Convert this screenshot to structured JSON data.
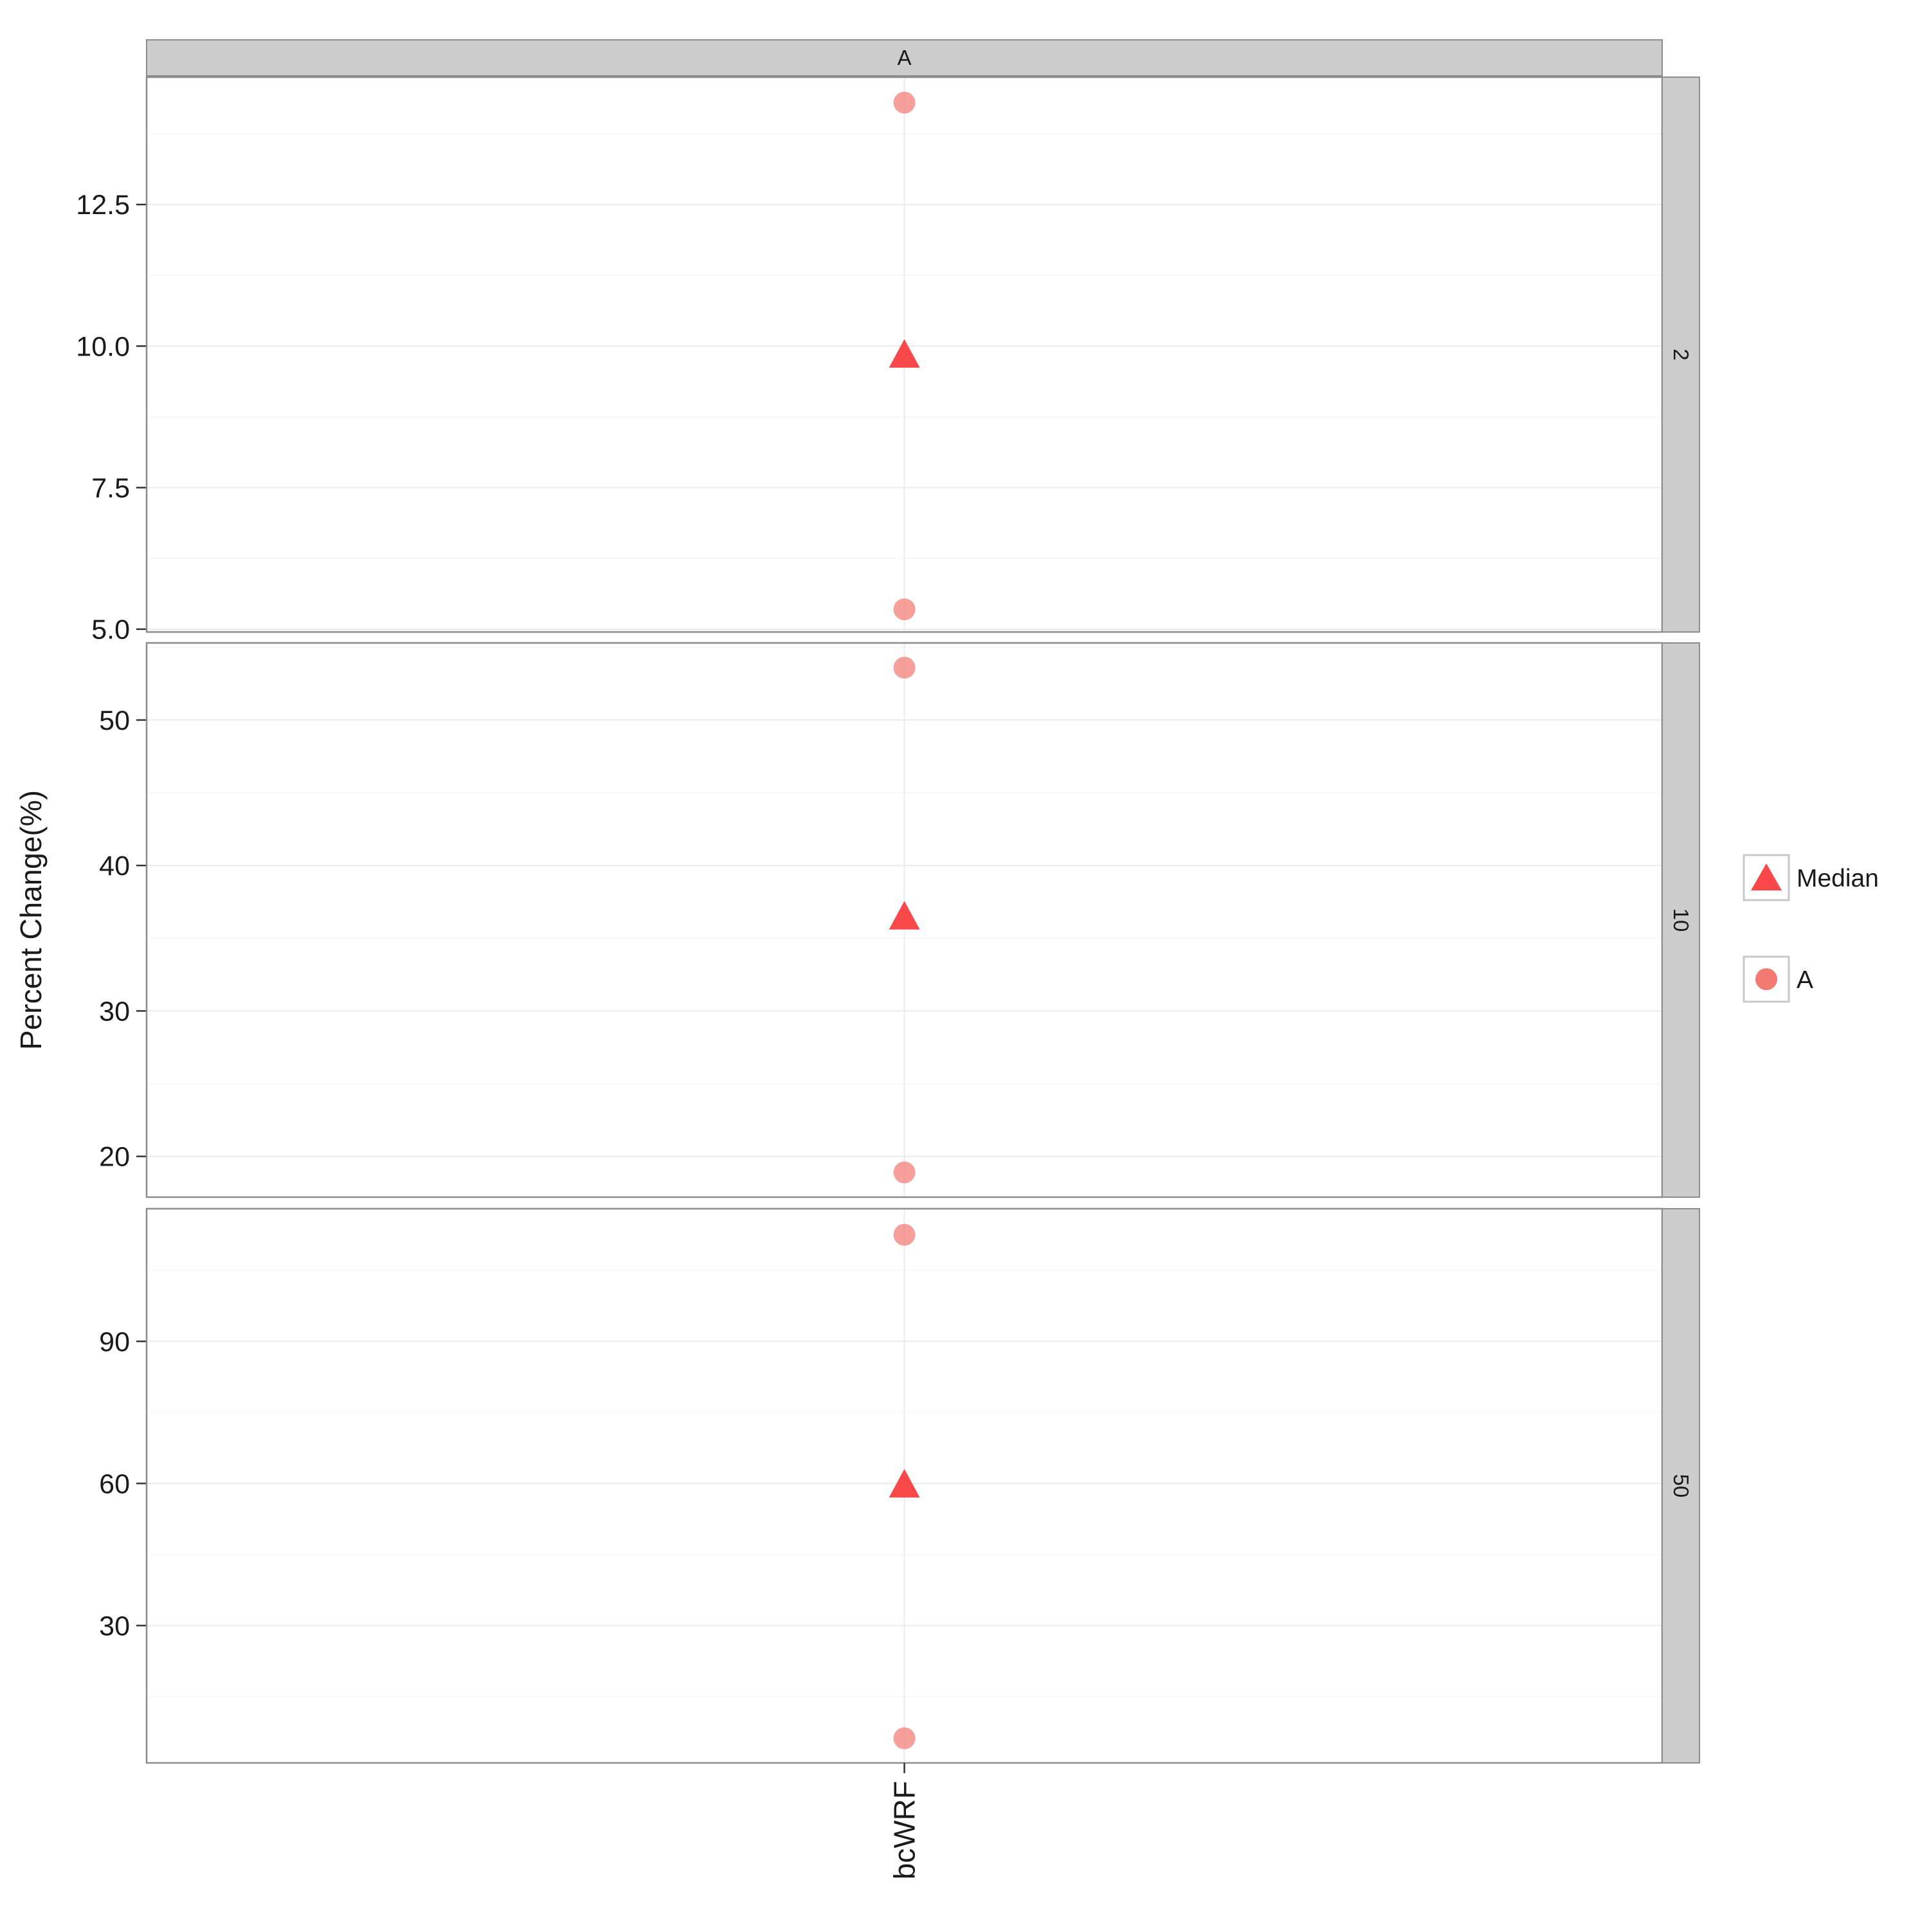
{
  "chart_data": {
    "type": "scatter",
    "ylabel": "Percent Change(%)",
    "xlabel": "",
    "categories": [
      "bcWRF"
    ],
    "column_strip": "A",
    "colors": {
      "median": "#F8484A",
      "point": "#F47A73",
      "strip_fill": "#CDCDCD",
      "panel_border": "#8C8C8C",
      "grid": "#EBEBEB"
    },
    "grid": true,
    "legend": {
      "position": "right",
      "entries": [
        {
          "label": "Median",
          "shape": "triangle"
        },
        {
          "label": "A",
          "shape": "circle"
        }
      ]
    },
    "panels": [
      {
        "strip": "2",
        "ylim": [
          4.95,
          14.75
        ],
        "yticks": [
          5.0,
          7.5,
          10.0,
          12.5
        ],
        "ytick_labels": [
          "5.0",
          "7.5",
          "10.0",
          "12.5"
        ],
        "points": [
          14.3,
          5.35
        ],
        "median": 9.85
      },
      {
        "strip": "10",
        "ylim": [
          17.2,
          55.3
        ],
        "yticks": [
          20,
          30,
          40,
          50
        ],
        "ytick_labels": [
          "20",
          "30",
          "40",
          "50"
        ],
        "points": [
          53.6,
          18.9
        ],
        "median": 36.5
      },
      {
        "strip": "50",
        "ylim": [
          1,
          118
        ],
        "yticks": [
          30,
          60,
          90
        ],
        "ytick_labels": [
          "30",
          "60",
          "90"
        ],
        "points": [
          112.5,
          6.2
        ],
        "median": 59.8
      }
    ]
  }
}
